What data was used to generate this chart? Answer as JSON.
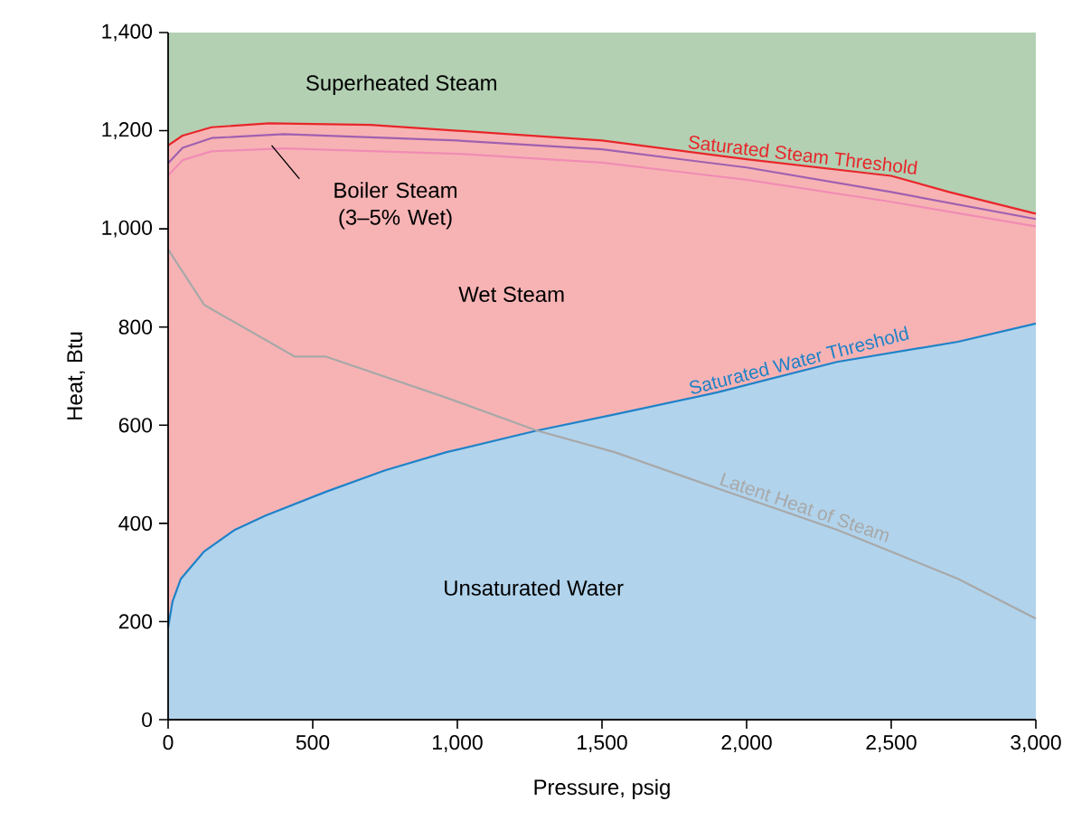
{
  "chart_data": {
    "type": "line",
    "xlabel": "Pressure, psig",
    "ylabel": "Heat, Btu",
    "xlim": [
      0,
      3000
    ],
    "ylim": [
      0,
      1400
    ],
    "xticks": [
      0,
      500,
      {
        "value": 1000,
        "label": "1,000"
      },
      {
        "value": 1500,
        "label": "1,500"
      },
      {
        "value": 2000,
        "label": "2,000"
      },
      {
        "value": 2500,
        "label": "2,500"
      },
      {
        "value": 3000,
        "label": "3,000"
      }
    ],
    "yticks": [
      0,
      200,
      400,
      600,
      800,
      {
        "value": 1000,
        "label": "1,000"
      },
      {
        "value": 1200,
        "label": "1,200"
      },
      {
        "value": 1400,
        "label": "1,400"
      }
    ],
    "grid": false,
    "legend": false,
    "marker": "none",
    "line_style": "solid",
    "bands": [
      {
        "axis": "y",
        "from": 1000,
        "to": 1400,
        "color": "#b3d0b3"
      }
    ],
    "series": [
      {
        "type": "area",
        "name": "Saturated Steam Threshold",
        "color": "#e8262a",
        "x": [
          0,
          50,
          150,
          350,
          700,
          1000,
          1500,
          2000,
          2500,
          2700,
          3000
        ],
        "values": [
          1170,
          1190,
          1207,
          1215,
          1212,
          1200,
          1180,
          1142,
          1108,
          1075,
          1031
        ]
      },
      {
        "type": "area",
        "name": "Saturated Water Threshold",
        "color": "#1f82c8",
        "x": [
          0,
          15,
          44,
          125,
          231,
          337,
          544,
          750,
          962,
          1275,
          1544,
          1900,
          2313,
          2731,
          3000
        ],
        "values": [
          188,
          240,
          287,
          343,
          387,
          416,
          464,
          508,
          545,
          589,
          622,
          667,
          729,
          770,
          807
        ]
      },
      {
        "color": "#f08cb4",
        "x": [
          0,
          50,
          150,
          400,
          1000,
          1500,
          2000,
          2500,
          3000
        ],
        "values": [
          1109,
          1140,
          1158,
          1164,
          1153,
          1135,
          1100,
          1055,
          1005
        ]
      },
      {
        "color": "#a060b0",
        "x": [
          0,
          50,
          150,
          400,
          1000,
          1500,
          2000,
          2500,
          3000
        ],
        "values": [
          1134,
          1165,
          1185,
          1193,
          1180,
          1162,
          1125,
          1075,
          1020
        ]
      },
      {
        "name": "Latent Heat of Steam",
        "color": "#a8a8a8",
        "x": [
          0,
          125,
          437,
          544,
          962,
          1275,
          1544,
          1900,
          2313,
          2731,
          3000
        ],
        "values": [
          958,
          845,
          740,
          740,
          656,
          589,
          545,
          471,
          387,
          287,
          206
        ]
      }
    ],
    "annotations": [
      "Superheated Steam",
      "Wet Steam",
      "Unsaturated Water",
      "Boiler Steam (3–5% Wet)"
    ]
  }
}
